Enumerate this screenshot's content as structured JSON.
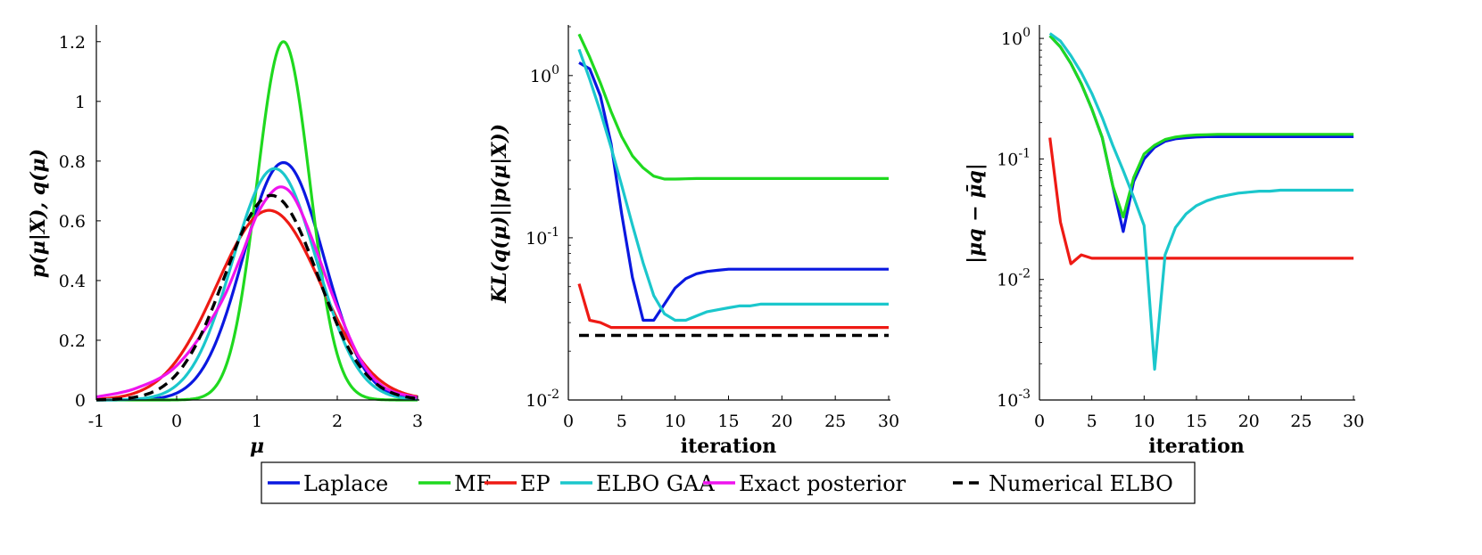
{
  "colors": {
    "Laplace": "#0a18e0",
    "MF": "#1fd91f",
    "EP": "#ee1a14",
    "ELBO GAA": "#1bc7cc",
    "Exact posterior": "#ee14ee",
    "Numerical ELBO": "#000000"
  },
  "legend": {
    "entries": [
      "Laplace",
      "MF",
      "EP",
      "ELBO GAA",
      "Exact posterior",
      "Numerical ELBO"
    ],
    "placement": "bottom-center"
  },
  "chart_data": [
    {
      "type": "line",
      "title": "",
      "xlabel": "μ",
      "ylabel": "p(μ|X), q(μ)",
      "xlim": [
        -1,
        3
      ],
      "ylim": [
        0,
        1.25
      ],
      "xticks": [
        -1,
        0,
        1,
        2,
        3
      ],
      "xtick_labels": [
        "-1",
        "0",
        "1",
        "2",
        "3"
      ],
      "yticks": [
        0,
        0.2,
        0.4,
        0.6,
        0.8,
        1,
        1.2
      ],
      "ytick_labels": [
        "0",
        "0.2",
        "0.4",
        "0.6",
        "0.8",
        "1",
        "1.2"
      ],
      "yscale": "linear",
      "series": [
        {
          "name": "Laplace",
          "type": "gaussian",
          "mean": 1.33,
          "sd": 0.5,
          "peak": 0.795
        },
        {
          "name": "MF",
          "type": "gaussian",
          "mean": 1.33,
          "sd": 0.33,
          "peak": 1.2
        },
        {
          "name": "EP",
          "type": "gaussian",
          "mean": 1.15,
          "sd": 0.65,
          "peak": 0.635
        },
        {
          "name": "ELBO GAA",
          "type": "gaussian",
          "mean": 1.22,
          "sd": 0.52,
          "peak": 0.775
        },
        {
          "name": "Exact posterior",
          "type": "skew",
          "x": [
            -1,
            -0.5,
            0,
            0.5,
            0.8,
            1.0,
            1.2,
            1.35,
            1.5,
            1.7,
            2.0,
            2.3,
            2.6,
            3.0
          ],
          "values": [
            0.01,
            0.04,
            0.115,
            0.3,
            0.48,
            0.62,
            0.7,
            0.71,
            0.66,
            0.53,
            0.31,
            0.13,
            0.04,
            0.008
          ]
        },
        {
          "name": "Numerical ELBO",
          "type": "gaussian",
          "mean": 1.18,
          "sd": 0.58,
          "peak": 0.685,
          "dashed": true
        }
      ]
    },
    {
      "type": "line",
      "title": "",
      "xlabel": "iteration",
      "ylabel": "KL(q(μ)||p(μ|X))",
      "xlim": [
        0,
        30
      ],
      "ylim": [
        0.01,
        2.0
      ],
      "yscale": "log",
      "xticks": [
        0,
        5,
        10,
        15,
        20,
        25,
        30
      ],
      "xtick_labels": [
        "0",
        "5",
        "10",
        "15",
        "20",
        "25",
        "30"
      ],
      "yticks": [
        0.01,
        0.1,
        1
      ],
      "ytick_labels": [
        [
          "10",
          "-2"
        ],
        [
          "10",
          "-1"
        ],
        [
          "10",
          "0"
        ]
      ],
      "x": [
        1,
        2,
        3,
        4,
        5,
        6,
        7,
        8,
        9,
        10,
        11,
        12,
        13,
        14,
        15,
        16,
        17,
        18,
        19,
        20,
        21,
        22,
        23,
        24,
        25,
        26,
        27,
        28,
        29,
        30
      ],
      "series": [
        {
          "name": "Laplace",
          "values": [
            1.2,
            1.1,
            0.75,
            0.38,
            0.14,
            0.057,
            0.031,
            0.031,
            0.039,
            0.049,
            0.056,
            0.06,
            0.062,
            0.063,
            0.064,
            0.064,
            0.064,
            0.064,
            0.064,
            0.064,
            0.064,
            0.064,
            0.064,
            0.064,
            0.064,
            0.064,
            0.064,
            0.064,
            0.064,
            0.064
          ]
        },
        {
          "name": "MF",
          "values": [
            1.8,
            1.3,
            0.9,
            0.6,
            0.42,
            0.32,
            0.27,
            0.24,
            0.23,
            0.23,
            0.231,
            0.232,
            0.232,
            0.232,
            0.232,
            0.232,
            0.232,
            0.232,
            0.232,
            0.232,
            0.232,
            0.232,
            0.232,
            0.232,
            0.232,
            0.232,
            0.232,
            0.232,
            0.232,
            0.232
          ]
        },
        {
          "name": "EP",
          "values": [
            0.052,
            0.031,
            0.03,
            0.028,
            0.028,
            0.028,
            0.028,
            0.028,
            0.028,
            0.028,
            0.028,
            0.028,
            0.028,
            0.028,
            0.028,
            0.028,
            0.028,
            0.028,
            0.028,
            0.028,
            0.028,
            0.028,
            0.028,
            0.028,
            0.028,
            0.028,
            0.028,
            0.028,
            0.028,
            0.028
          ]
        },
        {
          "name": "ELBO GAA",
          "values": [
            1.45,
            0.95,
            0.6,
            0.36,
            0.21,
            0.12,
            0.07,
            0.044,
            0.034,
            0.031,
            0.031,
            0.033,
            0.035,
            0.036,
            0.037,
            0.038,
            0.038,
            0.039,
            0.039,
            0.039,
            0.039,
            0.039,
            0.039,
            0.039,
            0.039,
            0.039,
            0.039,
            0.039,
            0.039,
            0.039
          ]
        },
        {
          "name": "Numerical ELBO",
          "dashed": true,
          "values": [
            0.025,
            0.025,
            0.025,
            0.025,
            0.025,
            0.025,
            0.025,
            0.025,
            0.025,
            0.025,
            0.025,
            0.025,
            0.025,
            0.025,
            0.025,
            0.025,
            0.025,
            0.025,
            0.025,
            0.025,
            0.025,
            0.025,
            0.025,
            0.025,
            0.025,
            0.025,
            0.025,
            0.025,
            0.025,
            0.025
          ]
        }
      ]
    },
    {
      "type": "line",
      "title": "",
      "xlabel": "iteration",
      "ylabel": "|μq − μ̄q|",
      "xlim": [
        0,
        30
      ],
      "ylim": [
        0.001,
        1.25
      ],
      "yscale": "log",
      "xticks": [
        0,
        5,
        10,
        15,
        20,
        25,
        30
      ],
      "xtick_labels": [
        "0",
        "5",
        "10",
        "15",
        "20",
        "25",
        "30"
      ],
      "yticks": [
        0.001,
        0.01,
        0.1,
        1
      ],
      "ytick_labels": [
        [
          "10",
          "-3"
        ],
        [
          "10",
          "-2"
        ],
        [
          "10",
          "-1"
        ],
        [
          "10",
          "0"
        ]
      ],
      "x": [
        1,
        2,
        3,
        4,
        5,
        6,
        7,
        8,
        9,
        10,
        11,
        12,
        13,
        14,
        15,
        16,
        17,
        18,
        19,
        20,
        21,
        22,
        23,
        24,
        25,
        26,
        27,
        28,
        29,
        30
      ],
      "series": [
        {
          "name": "Laplace",
          "values": [
            1.05,
            0.85,
            0.62,
            0.42,
            0.26,
            0.15,
            0.06,
            0.025,
            0.065,
            0.1,
            0.125,
            0.14,
            0.147,
            0.15,
            0.152,
            0.153,
            0.153,
            0.153,
            0.153,
            0.153,
            0.153,
            0.153,
            0.153,
            0.153,
            0.153,
            0.153,
            0.153,
            0.153,
            0.153,
            0.153
          ]
        },
        {
          "name": "MF",
          "values": [
            1.05,
            0.85,
            0.62,
            0.42,
            0.26,
            0.15,
            0.06,
            0.033,
            0.07,
            0.11,
            0.13,
            0.145,
            0.152,
            0.156,
            0.158,
            0.159,
            0.16,
            0.16,
            0.16,
            0.16,
            0.16,
            0.16,
            0.16,
            0.16,
            0.16,
            0.16,
            0.16,
            0.16,
            0.16,
            0.16
          ]
        },
        {
          "name": "EP",
          "values": [
            0.15,
            0.03,
            0.0135,
            0.016,
            0.015,
            0.015,
            0.015,
            0.015,
            0.015,
            0.015,
            0.015,
            0.015,
            0.015,
            0.015,
            0.015,
            0.015,
            0.015,
            0.015,
            0.015,
            0.015,
            0.015,
            0.015,
            0.015,
            0.015,
            0.015,
            0.015,
            0.015,
            0.015,
            0.015,
            0.015
          ]
        },
        {
          "name": "ELBO GAA",
          "values": [
            1.1,
            0.95,
            0.72,
            0.52,
            0.35,
            0.22,
            0.13,
            0.08,
            0.048,
            0.028,
            0.0018,
            0.016,
            0.027,
            0.035,
            0.041,
            0.045,
            0.048,
            0.05,
            0.052,
            0.053,
            0.054,
            0.054,
            0.055,
            0.055,
            0.055,
            0.055,
            0.055,
            0.055,
            0.055,
            0.055
          ]
        }
      ]
    }
  ]
}
